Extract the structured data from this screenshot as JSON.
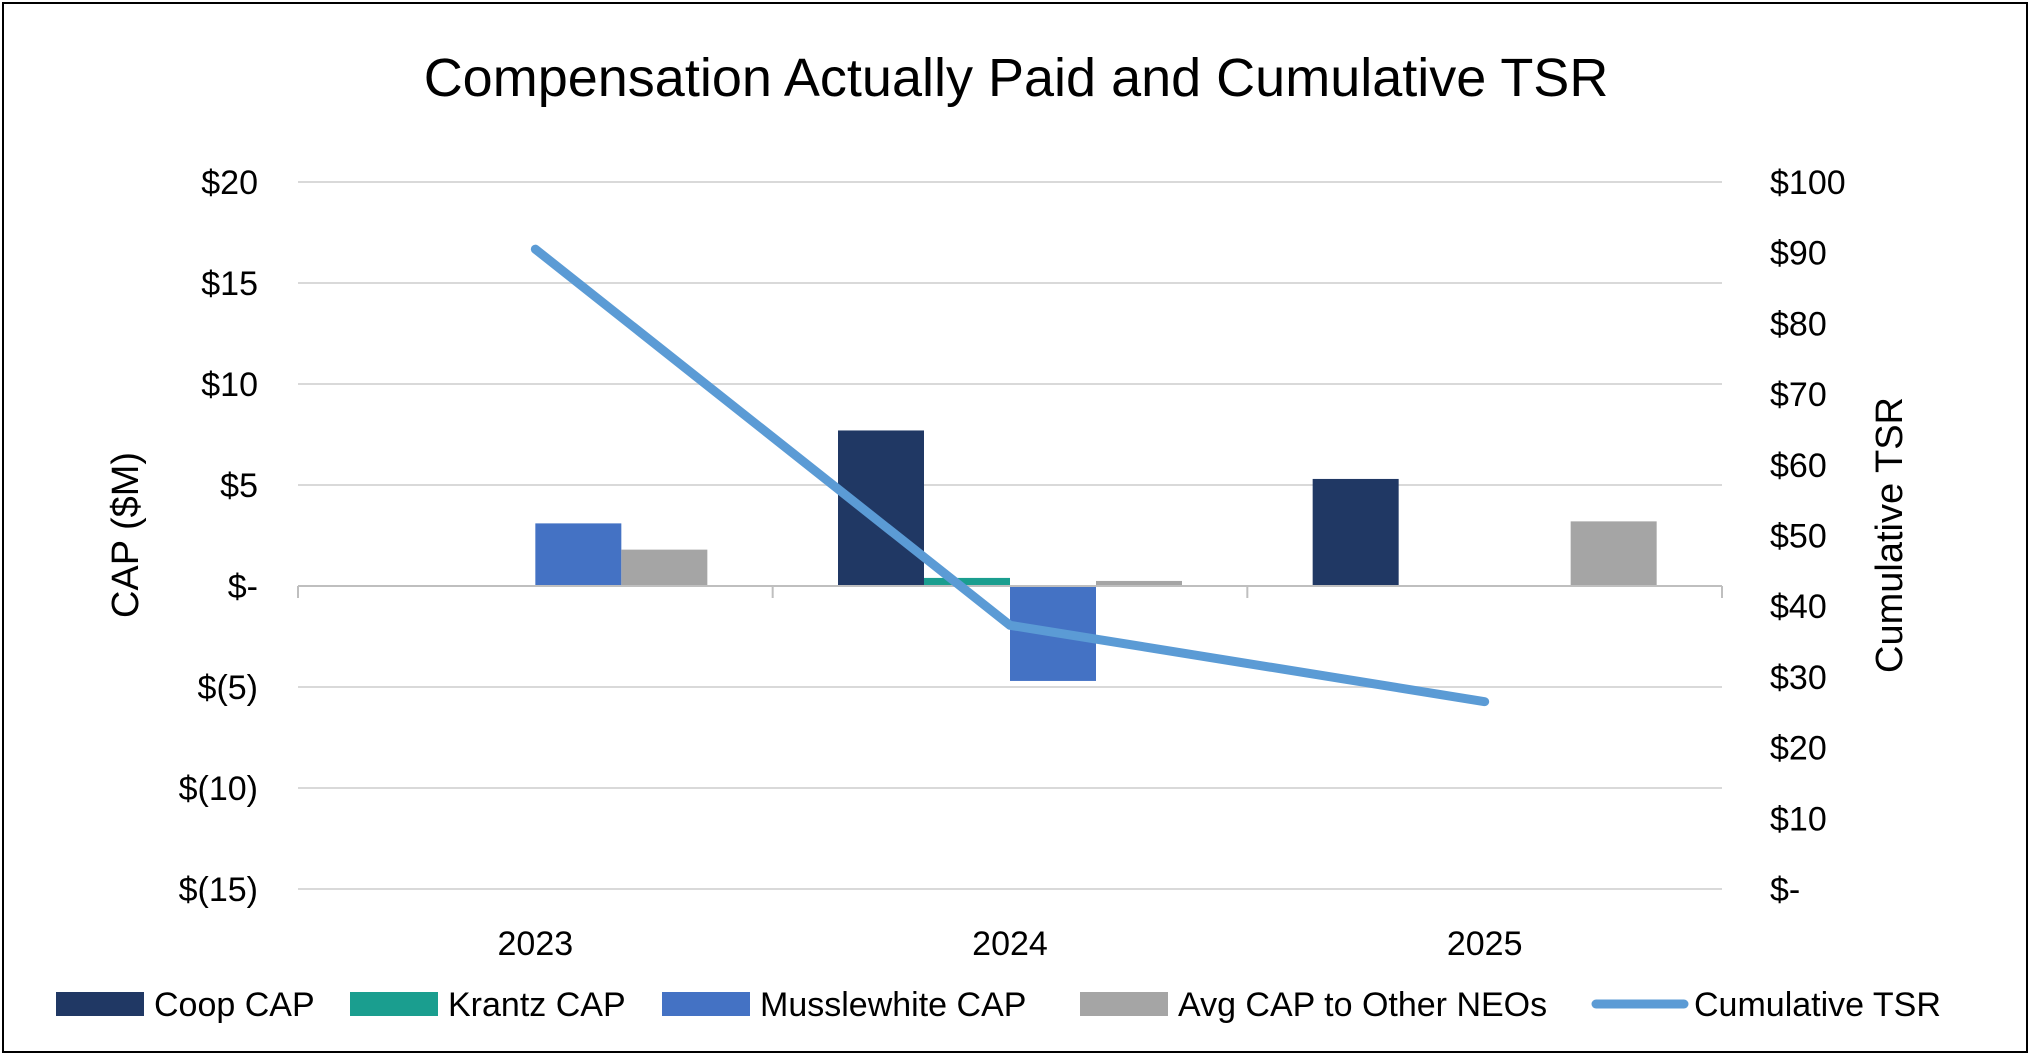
{
  "chart_data": {
    "type": "bar",
    "title": "Compensation Actually Paid and Cumulative TSR",
    "categories": [
      "2023",
      "2024",
      "2025"
    ],
    "ylabel": "CAP ($M)",
    "y2label": "Cumulative TSR",
    "ylim": [
      -15,
      20
    ],
    "y2lim": [
      0,
      100
    ],
    "yticks": [
      {
        "value": 20,
        "label": "$20"
      },
      {
        "value": 15,
        "label": "$15"
      },
      {
        "value": 10,
        "label": "$10"
      },
      {
        "value": 5,
        "label": "$5"
      },
      {
        "value": 0,
        "label": "$-"
      },
      {
        "value": -5,
        "label": "$(5)"
      },
      {
        "value": -10,
        "label": "$(10)"
      },
      {
        "value": -15,
        "label": "$(15)"
      }
    ],
    "y2ticks": [
      {
        "value": 100,
        "label": "$100"
      },
      {
        "value": 90,
        "label": "$90"
      },
      {
        "value": 80,
        "label": "$80"
      },
      {
        "value": 70,
        "label": "$70"
      },
      {
        "value": 60,
        "label": "$60"
      },
      {
        "value": 50,
        "label": "$50"
      },
      {
        "value": 40,
        "label": "$40"
      },
      {
        "value": 30,
        "label": "$30"
      },
      {
        "value": 20,
        "label": "$20"
      },
      {
        "value": 10,
        "label": "$10"
      },
      {
        "value": 0,
        "label": "$-"
      }
    ],
    "series": [
      {
        "name": "Coop CAP",
        "type": "bar",
        "color": "#203864",
        "values": [
          0,
          7.7,
          5.3
        ]
      },
      {
        "name": "Krantz CAP",
        "type": "bar",
        "color": "#1a9e8f",
        "values": [
          0,
          0.4,
          0
        ]
      },
      {
        "name": "Musslewhite CAP",
        "type": "bar",
        "color": "#4472c4",
        "values": [
          3.1,
          -4.7,
          0
        ]
      },
      {
        "name": "Avg CAP to Other NEOs",
        "type": "bar",
        "color": "#a5a5a5",
        "values": [
          1.8,
          0.25,
          3.2
        ]
      },
      {
        "name": "Cumulative TSR",
        "type": "line",
        "axis": "right",
        "color": "#5b9bd5",
        "values": [
          90.5,
          37.3,
          26.5
        ]
      }
    ],
    "grid": true,
    "legend": "bottom"
  }
}
